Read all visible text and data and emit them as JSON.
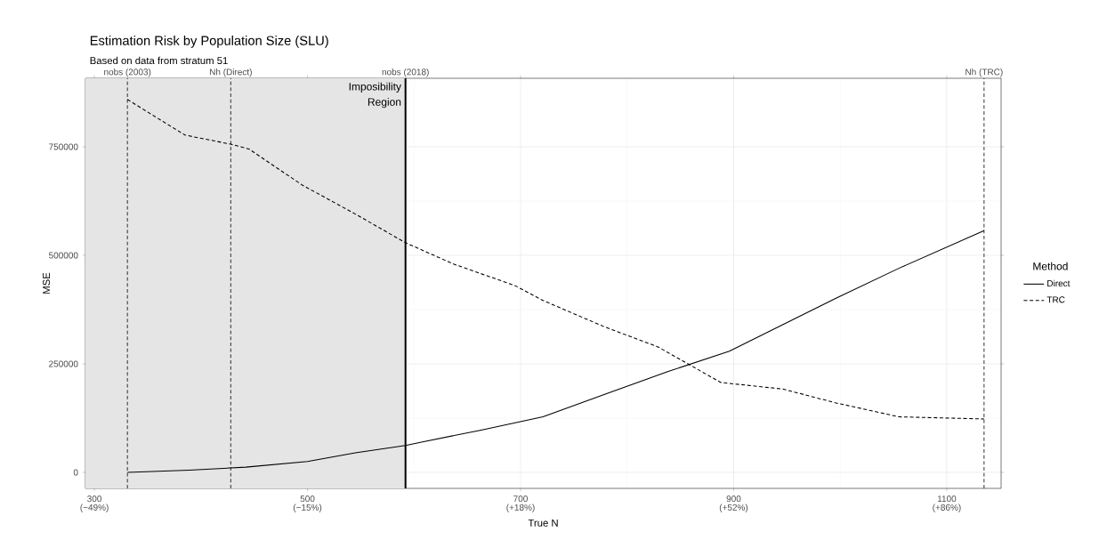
{
  "chart_data": {
    "type": "line",
    "title": "Estimation Risk by Population Size (SLU)",
    "subtitle": "Based on data from stratum 51",
    "xlabel": "True N",
    "ylabel": "MSE",
    "legend_title": "Method",
    "series": [
      {
        "name": "Direct",
        "color": "#000000",
        "line_style": "solid",
        "x": [
          331,
          389,
          442,
          500,
          545,
          592,
          608,
          662,
          721,
          779,
          838,
          896,
          946,
          996,
          1055,
          1135
        ],
        "values": [
          0,
          5000,
          12000,
          25000,
          45000,
          62000,
          70000,
          97000,
          128000,
          180000,
          232000,
          279000,
          340000,
          401000,
          470000,
          557000
        ]
      },
      {
        "name": "TRC",
        "color": "#000000",
        "line_style": "dashed",
        "x": [
          331,
          385,
          428,
          445,
          495,
          545,
          592,
          637,
          695,
          721,
          779,
          829,
          888,
          946,
          996,
          1055,
          1135
        ],
        "values": [
          859000,
          777000,
          756000,
          745000,
          662000,
          595000,
          529000,
          480000,
          430000,
          396000,
          335000,
          289000,
          207000,
          192000,
          160000,
          128000,
          123000
        ]
      }
    ],
    "xlim": [
      291.6,
      1151
    ],
    "ylim": [
      -36900,
      907800
    ],
    "xticks": [
      300,
      500,
      700,
      900,
      1100
    ],
    "yticks": [
      0,
      250000,
      500000,
      750000
    ],
    "grid": true,
    "legend": "right",
    "ref_lines": [
      {
        "axis": "x",
        "value": 331,
        "label": "nobs (2003)",
        "line_style": "dashed"
      },
      {
        "axis": "x",
        "value": 428,
        "label": "Nh (Direct)",
        "line_style": "dashed"
      },
      {
        "axis": "x",
        "value": 592,
        "label": "nobs (2018)",
        "line_style": "solid"
      },
      {
        "axis": "x",
        "value": 1135,
        "label": "Nh (TRC)",
        "line_style": "dashed"
      }
    ],
    "bands": [
      {
        "axis": "x",
        "from": 291.6,
        "to": 592,
        "color": "#e5e5e5"
      }
    ],
    "annotations": [
      "Imposibility Region",
      "(−49%)",
      "(−15%)",
      "(+18%)",
      "(+52%)",
      "(+86%)"
    ]
  }
}
